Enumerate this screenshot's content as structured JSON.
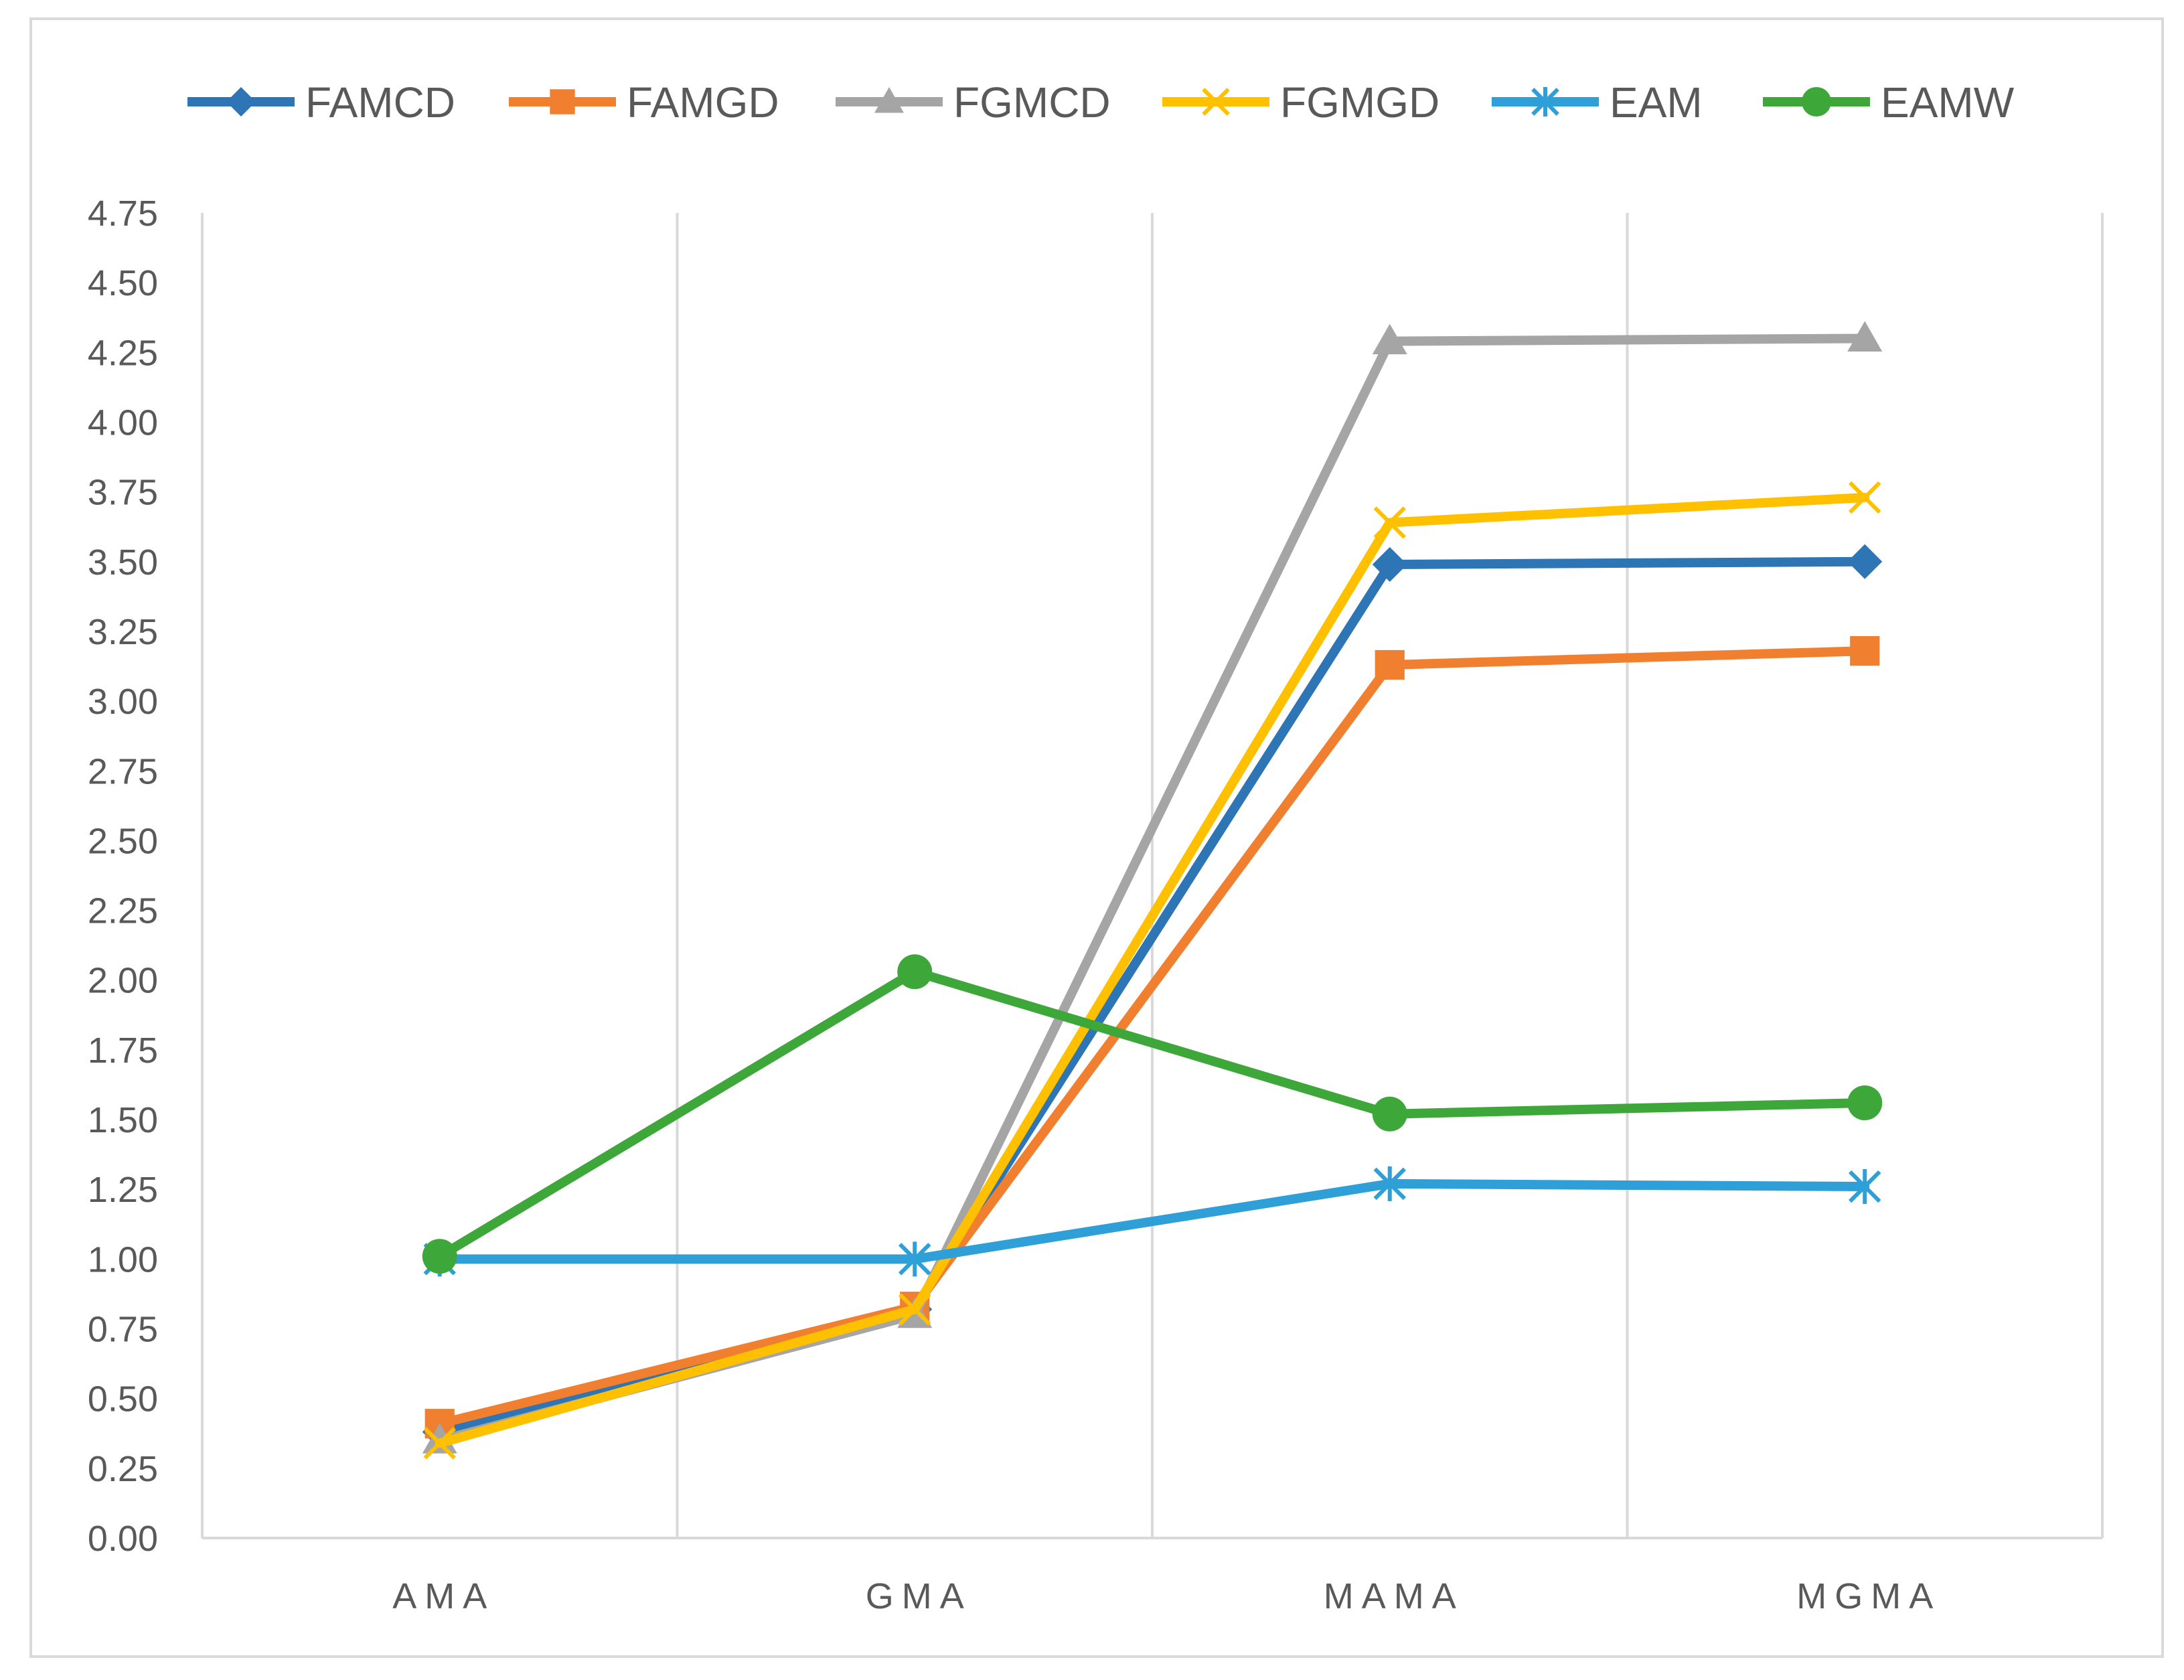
{
  "chart_data": {
    "type": "line",
    "title": "",
    "xlabel": "",
    "ylabel": "",
    "categories": [
      "AMA",
      "GMA",
      "MAMA",
      "MGMA"
    ],
    "ylim": [
      0,
      4.75
    ],
    "yticks": [
      "0.00",
      "0.25",
      "0.50",
      "0.75",
      "1.00",
      "1.25",
      "1.50",
      "1.75",
      "2.00",
      "2.25",
      "2.50",
      "2.75",
      "3.00",
      "3.25",
      "3.50",
      "3.75",
      "4.00",
      "4.25",
      "4.50",
      "4.75"
    ],
    "grid": "vertical",
    "legend_position": "top",
    "series": [
      {
        "name": "FAMCD",
        "color": "#2e75b6",
        "marker": "diamond",
        "values": [
          0.38,
          0.82,
          3.49,
          3.5
        ]
      },
      {
        "name": "FAMGD",
        "color": "#f07f2f",
        "marker": "square",
        "values": [
          0.41,
          0.83,
          3.13,
          3.18
        ]
      },
      {
        "name": "FGMCD",
        "color": "#a5a5a5",
        "marker": "triangle",
        "values": [
          0.35,
          0.8,
          4.29,
          4.3
        ]
      },
      {
        "name": "FGMGD",
        "color": "#ffc000",
        "marker": "x",
        "values": [
          0.34,
          0.82,
          3.64,
          3.73
        ]
      },
      {
        "name": "EAM",
        "color": "#2f9fd8",
        "marker": "star",
        "values": [
          1.0,
          1.0,
          1.27,
          1.26
        ]
      },
      {
        "name": "EAMW",
        "color": "#3ea73a",
        "marker": "circle",
        "values": [
          1.01,
          2.03,
          1.52,
          1.56
        ]
      }
    ]
  }
}
